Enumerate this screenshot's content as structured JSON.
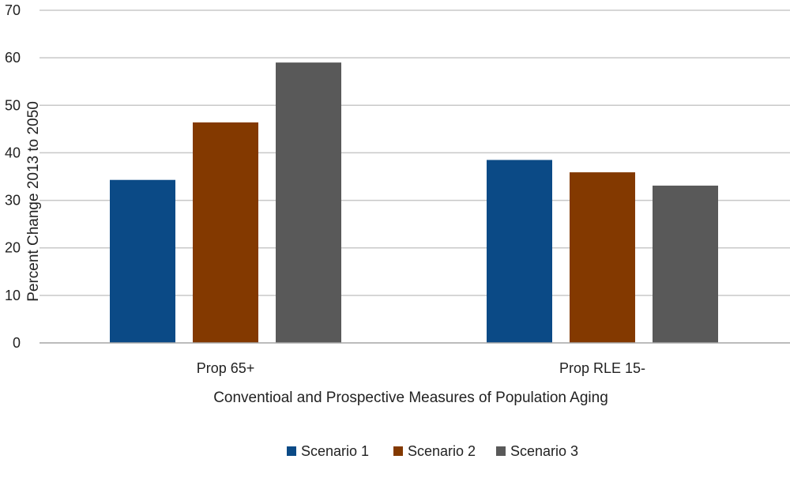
{
  "chart_data": {
    "type": "bar",
    "title": "",
    "xlabel": "Conventioal and Prospective Measures of Population Aging",
    "ylabel": "Percent Change 2013 to 2050",
    "categories": [
      "Prop 65+",
      "Prop RLE 15-"
    ],
    "series": [
      {
        "name": "Scenario 1",
        "color": "#0b4a86",
        "values": [
          34.3,
          38.5
        ]
      },
      {
        "name": "Scenario 2",
        "color": "#833900",
        "values": [
          46.4,
          35.9
        ]
      },
      {
        "name": "Scenario 3",
        "color": "#595959",
        "values": [
          59.0,
          33.1
        ]
      }
    ],
    "ylim": [
      0,
      70
    ],
    "yticks": [
      0,
      10,
      20,
      30,
      40,
      50,
      60,
      70
    ],
    "grid": true,
    "legend": "bottom-center",
    "gridColor": "#c8c8c8",
    "axisColor": "#a6a6a6"
  }
}
